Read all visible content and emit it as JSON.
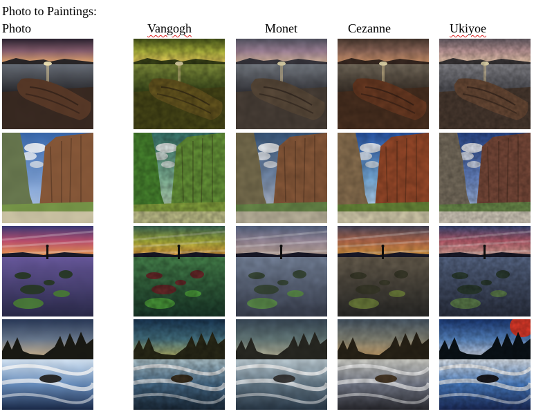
{
  "title": "Photo to Paintings:",
  "columns": [
    {
      "label": "Photo",
      "spellcheck_underline": false
    },
    {
      "label": "Vangogh",
      "spellcheck_underline": true
    },
    {
      "label": "Monet",
      "spellcheck_underline": false
    },
    {
      "label": "Cezanne",
      "spellcheck_underline": false
    },
    {
      "label": "Ukiyoe",
      "spellcheck_underline": true
    }
  ],
  "rows": [
    {
      "scene": "sunset-lake-driftwood"
    },
    {
      "scene": "canyon-cliffs"
    },
    {
      "scene": "colorful-sunset-rocks-reflection"
    },
    {
      "scene": "river-rapids-forest"
    }
  ],
  "palettes": {
    "sunset": {
      "photo": {
        "sky": [
          "#2a2230",
          "#8a6070",
          "#f0b070"
        ],
        "water": [
          "#6a707a",
          "#2a2a2e"
        ],
        "land": "#3a2a22",
        "obj": "#5a3a28",
        "hills": "#2a2628"
      },
      "vangogh": {
        "sky": [
          "#4a5a1a",
          "#b8c040",
          "#f0d060"
        ],
        "water": [
          "#8a9a40",
          "#3a4a1a"
        ],
        "land": "#4a4a18",
        "obj": "#6a5a20",
        "hills": "#3a4418"
      },
      "monet": {
        "sky": [
          "#5a5a6a",
          "#a88aa0",
          "#e0c0a0"
        ],
        "water": [
          "#7a8088",
          "#3a3a40"
        ],
        "land": "#4a4038",
        "obj": "#5a4a3a",
        "hills": "#3a3840"
      },
      "cezanne": {
        "sky": [
          "#4a3a30",
          "#9a7060",
          "#e0a070"
        ],
        "water": [
          "#7a7060",
          "#3a3028"
        ],
        "land": "#4a3020",
        "obj": "#6a3a22",
        "hills": "#3a2a22"
      },
      "ukiyoe": {
        "sky": [
          "#6a6068",
          "#c8a0a0",
          "#f0d0b0"
        ],
        "water": [
          "#8a8a90",
          "#4a4a50"
        ],
        "land": "#4a3a30",
        "obj": "#6a4a36",
        "hills": "#3a3638"
      }
    },
    "canyon": {
      "photo": {
        "sky": [
          "#3a6ab0",
          "#7aa0d8",
          "#c8d8f0"
        ],
        "cliff": "#8a5a3a",
        "cliff2": "#6a7a50",
        "ground": "#7a9a4a",
        "sand": "#d0c8a8"
      },
      "vangogh": {
        "sky": [
          "#3a7a70",
          "#88c0a0",
          "#d8e8c8"
        ],
        "cliff": "#6a9a3a",
        "cliff2": "#4a8a30",
        "ground": "#8aa840",
        "sand": "#c8c890"
      },
      "monet": {
        "sky": [
          "#3a5a80",
          "#7a90b0",
          "#c8c8d0"
        ],
        "cliff": "#8a5a3a",
        "cliff2": "#7a7050",
        "ground": "#6a8a4a",
        "sand": "#c0b8a0"
      },
      "cezanne": {
        "sky": [
          "#2a5ab0",
          "#7ab0e0",
          "#d8e8f8"
        ],
        "cliff": "#9a4a2a",
        "cliff2": "#8a7050",
        "ground": "#6a8a3a",
        "sand": "#d8d0b0"
      },
      "ukiyoe": {
        "sky": [
          "#2a4a90",
          "#6a88c8",
          "#c0d0e8"
        ],
        "cliff": "#7a4a3a",
        "cliff2": "#7a7060",
        "ground": "#6a8a4a",
        "sand": "#d8d0c0"
      }
    },
    "colorful": {
      "photo": {
        "sky": [
          "#3a3a7a",
          "#c05070",
          "#f0a050"
        ],
        "water": [
          "#6a5aa0",
          "#2a2a4a"
        ],
        "rock": "#2a3a2a",
        "moss": "#4a7a3a"
      },
      "vangogh": {
        "sky": [
          "#3a6a5a",
          "#b8c040",
          "#f0a040"
        ],
        "water": [
          "#4a8a50",
          "#1a3a2a"
        ],
        "rock": "#6a2a2a",
        "moss": "#4a9a3a"
      },
      "monet": {
        "sky": [
          "#5a6a8a",
          "#a090a0",
          "#c8b0a0"
        ],
        "water": [
          "#7a88a0",
          "#3a4050"
        ],
        "rock": "#3a4a3a",
        "moss": "#5a8a4a"
      },
      "cezanne": {
        "sky": [
          "#4a4a60",
          "#c07050",
          "#e0a040"
        ],
        "water": [
          "#6a6050",
          "#2a2a28"
        ],
        "rock": "#3a3a2a",
        "moss": "#6a7a3a"
      },
      "ukiyoe": {
        "sky": [
          "#3a4a7a",
          "#c06070",
          "#e0b0a0"
        ],
        "water": [
          "#5a6a8a",
          "#2a3040"
        ],
        "rock": "#2a3a30",
        "moss": "#5a7a4a"
      }
    },
    "river": {
      "photo": {
        "sky": [
          "#2a3a5a",
          "#6a7a90",
          "#e0c090"
        ],
        "trees": "#1a1a14",
        "water": [
          "#d8e8f8",
          "#6a90c0",
          "#1a2a4a"
        ],
        "rock": "#2a2a2a"
      },
      "vangogh": {
        "sky": [
          "#1a3a5a",
          "#4a7a8a",
          "#d8d070"
        ],
        "trees": "#2a2a18",
        "water": [
          "#b8d0d8",
          "#4a7090",
          "#1a2a3a"
        ],
        "rock": "#3a3020"
      },
      "monet": {
        "sky": [
          "#3a4a5a",
          "#6a8080",
          "#c8c0a0"
        ],
        "trees": "#2a2a24",
        "water": [
          "#c8d8e0",
          "#6a8090",
          "#2a3a4a"
        ],
        "rock": "#3a3a3a"
      },
      "cezanne": {
        "sky": [
          "#4a5a6a",
          "#8a8a7a",
          "#e0b070"
        ],
        "trees": "#2a2418",
        "water": [
          "#d8d8d0",
          "#7a8090",
          "#2a2a30"
        ],
        "rock": "#4a3a28"
      },
      "ukiyoe": {
        "sky": [
          "#1a3a7a",
          "#5a8ac8",
          "#e8e8f0"
        ],
        "trees": "#0a1218",
        "water": [
          "#e8f0f8",
          "#4a80c8",
          "#1a2a5a"
        ],
        "rock": "#1a1a20",
        "accent": "#e03a2a"
      }
    }
  }
}
